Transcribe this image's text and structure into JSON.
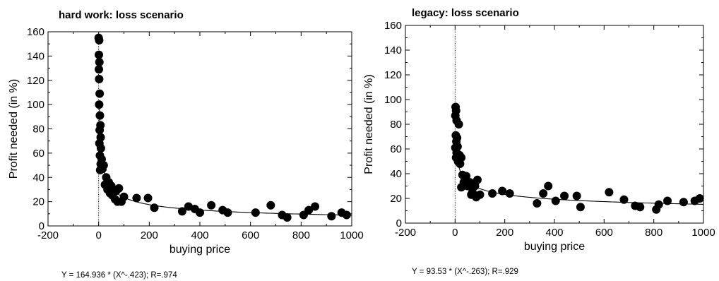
{
  "chart_data": [
    {
      "type": "scatter",
      "title": "hard work: loss scenario",
      "xlabel": "buying price",
      "ylabel": "Profit needed (in %)",
      "xlim": [
        -200,
        1000
      ],
      "ylim": [
        0,
        160
      ],
      "x_ticks": [
        -200,
        0,
        200,
        400,
        600,
        800,
        1000
      ],
      "y_ticks": [
        0,
        20,
        40,
        60,
        80,
        100,
        120,
        140,
        160
      ],
      "grid": false,
      "reference_line": {
        "x": 0,
        "style": "dotted"
      },
      "fit_equation": "Y = 164.936 * (X^-.423); R=.974",
      "fit": {
        "a": 164.936,
        "b": -0.423
      },
      "points": [
        {
          "x": 0,
          "y": 155
        },
        {
          "x": 2,
          "y": 153
        },
        {
          "x": 1,
          "y": 141
        },
        {
          "x": 3,
          "y": 135
        },
        {
          "x": 1,
          "y": 129
        },
        {
          "x": 2,
          "y": 121
        },
        {
          "x": 4,
          "y": 109
        },
        {
          "x": 2,
          "y": 100
        },
        {
          "x": 5,
          "y": 91
        },
        {
          "x": 7,
          "y": 83
        },
        {
          "x": 4,
          "y": 79
        },
        {
          "x": 8,
          "y": 73
        },
        {
          "x": 3,
          "y": 68
        },
        {
          "x": 9,
          "y": 64
        },
        {
          "x": 5,
          "y": 58
        },
        {
          "x": 12,
          "y": 55
        },
        {
          "x": 8,
          "y": 51
        },
        {
          "x": 20,
          "y": 50
        },
        {
          "x": 6,
          "y": 46
        },
        {
          "x": 15,
          "y": 47
        },
        {
          "x": 30,
          "y": 40
        },
        {
          "x": 40,
          "y": 36
        },
        {
          "x": 25,
          "y": 34
        },
        {
          "x": 50,
          "y": 33
        },
        {
          "x": 35,
          "y": 30
        },
        {
          "x": 60,
          "y": 28
        },
        {
          "x": 45,
          "y": 27
        },
        {
          "x": 70,
          "y": 29
        },
        {
          "x": 80,
          "y": 31
        },
        {
          "x": 55,
          "y": 25
        },
        {
          "x": 65,
          "y": 22
        },
        {
          "x": 75,
          "y": 20
        },
        {
          "x": 90,
          "y": 20
        },
        {
          "x": 100,
          "y": 24
        },
        {
          "x": 150,
          "y": 23
        },
        {
          "x": 195,
          "y": 23
        },
        {
          "x": 220,
          "y": 15
        },
        {
          "x": 330,
          "y": 12
        },
        {
          "x": 355,
          "y": 16
        },
        {
          "x": 380,
          "y": 14
        },
        {
          "x": 400,
          "y": 11
        },
        {
          "x": 445,
          "y": 17
        },
        {
          "x": 490,
          "y": 13
        },
        {
          "x": 510,
          "y": 11
        },
        {
          "x": 620,
          "y": 11
        },
        {
          "x": 680,
          "y": 17
        },
        {
          "x": 725,
          "y": 9
        },
        {
          "x": 745,
          "y": 7
        },
        {
          "x": 810,
          "y": 9
        },
        {
          "x": 830,
          "y": 13
        },
        {
          "x": 855,
          "y": 16
        },
        {
          "x": 920,
          "y": 8
        },
        {
          "x": 960,
          "y": 11
        },
        {
          "x": 980,
          "y": 9
        }
      ]
    },
    {
      "type": "scatter",
      "title": "legacy: loss scenario",
      "xlabel": "buying price",
      "ylabel": "Profit needed (in %)",
      "xlim": [
        -200,
        1000
      ],
      "ylim": [
        0,
        160
      ],
      "x_ticks": [
        -200,
        0,
        200,
        400,
        600,
        800,
        1000
      ],
      "y_ticks": [
        0,
        20,
        40,
        60,
        80,
        100,
        120,
        140,
        160
      ],
      "grid": false,
      "reference_line": {
        "x": 0,
        "style": "dotted"
      },
      "fit_equation": "Y = 93.53 * (X^-.263); R=.929",
      "fit": {
        "a": 93.53,
        "b": -0.263
      },
      "points": [
        {
          "x": 2,
          "y": 94
        },
        {
          "x": 4,
          "y": 91
        },
        {
          "x": 1,
          "y": 87
        },
        {
          "x": 6,
          "y": 83
        },
        {
          "x": 15,
          "y": 80
        },
        {
          "x": 3,
          "y": 71
        },
        {
          "x": 8,
          "y": 69
        },
        {
          "x": 5,
          "y": 66
        },
        {
          "x": 1,
          "y": 61
        },
        {
          "x": 10,
          "y": 62
        },
        {
          "x": 6,
          "y": 57
        },
        {
          "x": 18,
          "y": 55
        },
        {
          "x": 4,
          "y": 53
        },
        {
          "x": 25,
          "y": 53
        },
        {
          "x": 12,
          "y": 50
        },
        {
          "x": 20,
          "y": 48
        },
        {
          "x": 30,
          "y": 39
        },
        {
          "x": 45,
          "y": 38
        },
        {
          "x": 35,
          "y": 33
        },
        {
          "x": 60,
          "y": 33
        },
        {
          "x": 25,
          "y": 29
        },
        {
          "x": 50,
          "y": 30
        },
        {
          "x": 80,
          "y": 30
        },
        {
          "x": 90,
          "y": 35
        },
        {
          "x": 70,
          "y": 25
        },
        {
          "x": 65,
          "y": 23
        },
        {
          "x": 85,
          "y": 21
        },
        {
          "x": 100,
          "y": 23
        },
        {
          "x": 150,
          "y": 24
        },
        {
          "x": 190,
          "y": 26
        },
        {
          "x": 220,
          "y": 24
        },
        {
          "x": 330,
          "y": 16
        },
        {
          "x": 355,
          "y": 24
        },
        {
          "x": 375,
          "y": 30
        },
        {
          "x": 405,
          "y": 18
        },
        {
          "x": 440,
          "y": 22
        },
        {
          "x": 490,
          "y": 22
        },
        {
          "x": 505,
          "y": 13
        },
        {
          "x": 620,
          "y": 25
        },
        {
          "x": 680,
          "y": 19
        },
        {
          "x": 725,
          "y": 14
        },
        {
          "x": 745,
          "y": 13
        },
        {
          "x": 810,
          "y": 11
        },
        {
          "x": 820,
          "y": 15
        },
        {
          "x": 855,
          "y": 18
        },
        {
          "x": 920,
          "y": 17
        },
        {
          "x": 965,
          "y": 18
        },
        {
          "x": 985,
          "y": 20
        }
      ]
    }
  ]
}
